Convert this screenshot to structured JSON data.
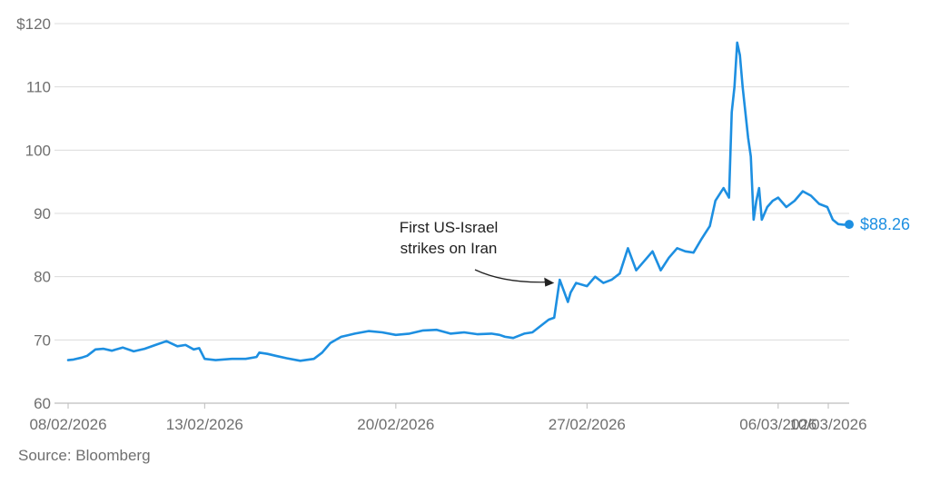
{
  "chart_data": {
    "type": "line",
    "title": "",
    "xlabel": "",
    "ylabel": "",
    "ylim": [
      60,
      120
    ],
    "y_ticks": [
      60,
      70,
      80,
      90,
      100,
      110,
      120
    ],
    "y_tick_labels": [
      "60",
      "70",
      "80",
      "90",
      "100",
      "110",
      "$120"
    ],
    "x_ticks": [
      "08/02/2026",
      "13/02/2026",
      "20/02/2026",
      "27/02/2026",
      "06/03/2026",
      "10/03/2026"
    ],
    "grid": "horizontal",
    "legend": "none",
    "line_color": "#1d8fe1",
    "series": [
      {
        "x": [
          "08/02/2026",
          "08/02/2026",
          "08/02/2026",
          "09/02/2026",
          "09/02/2026",
          "09/02/2026",
          "09/02/2026",
          "10/02/2026",
          "10/02/2026",
          "10/02/2026",
          "11/02/2026",
          "11/02/2026",
          "12/02/2026",
          "12/02/2026",
          "12/02/2026",
          "12/02/2026",
          "13/02/2026",
          "13/02/2026",
          "14/02/2026",
          "15/02/2026",
          "15/02/2026",
          "16/02/2026",
          "16/02/2026",
          "16/02/2026",
          "17/02/2026",
          "17/02/2026",
          "18/02/2026",
          "18/02/2026",
          "18/02/2026",
          "19/02/2026",
          "19/02/2026",
          "20/02/2026",
          "20/02/2026",
          "21/02/2026",
          "22/02/2026",
          "22/02/2026",
          "23/02/2026",
          "23/02/2026",
          "24/02/2026",
          "24/02/2026",
          "25/02/2026",
          "25/02/2026",
          "25/02/2026",
          "26/02/2026",
          "26/02/2026",
          "26/02/2026",
          "27/02/2026",
          "27/02/2026",
          "27/02/2026",
          "28/02/2026",
          "28/02/2026",
          "28/02/2026",
          "01/03/2026",
          "01/03/2026",
          "01/03/2026",
          "01/03/2026",
          "02/03/2026",
          "02/03/2026",
          "02/03/2026",
          "03/03/2026",
          "03/03/2026",
          "03/03/2026",
          "04/03/2026",
          "04/03/2026",
          "04/03/2026",
          "05/03/2026",
          "05/03/2026",
          "05/03/2026",
          "06/03/2026",
          "06/03/2026",
          "06/03/2026",
          "06/03/2026",
          "07/03/2026",
          "07/03/2026",
          "07/03/2026",
          "07/03/2026",
          "07/03/2026",
          "07/03/2026",
          "07/03/2026",
          "07/03/2026",
          "08/03/2026",
          "08/03/2026",
          "08/03/2026",
          "08/03/2026",
          "08/03/2026",
          "08/03/2026",
          "08/03/2026",
          "08/03/2026",
          "08/03/2026",
          "09/03/2026",
          "09/03/2026",
          "09/03/2026",
          "09/03/2026",
          "10/03/2026",
          "10/03/2026",
          "10/03/2026"
        ],
        "t": [
          0.0,
          0.2,
          0.5,
          0.7,
          1.0,
          1.3,
          1.6,
          2.0,
          2.4,
          2.8,
          3.2,
          3.6,
          4.0,
          4.3,
          4.6,
          4.8,
          5.0,
          5.4,
          6.0,
          6.5,
          6.9,
          7.0,
          7.3,
          7.6,
          8.0,
          8.5,
          9.0,
          9.3,
          9.6,
          10.0,
          10.5,
          11.0,
          11.5,
          12.0,
          12.5,
          13.0,
          13.5,
          14.0,
          14.5,
          15.0,
          15.5,
          15.8,
          16.0,
          16.3,
          16.7,
          17.0,
          17.6,
          17.8,
          18.0,
          18.3,
          18.4,
          18.6,
          19.0,
          19.3,
          19.6,
          19.9,
          20.2,
          20.5,
          20.8,
          21.1,
          21.4,
          21.7,
          22.0,
          22.3,
          22.6,
          22.9,
          23.2,
          23.5,
          23.7,
          24.0,
          24.2,
          24.3,
          24.4,
          24.5,
          24.6,
          24.7,
          24.8,
          24.9,
          25.0,
          25.1,
          25.2,
          25.3,
          25.4,
          25.6,
          25.8,
          26.0,
          26.3,
          26.6,
          26.9,
          27.2,
          27.5,
          27.8,
          28.0,
          28.2,
          28.4,
          28.6
        ],
        "y": [
          66.8,
          66.9,
          67.2,
          67.5,
          68.5,
          68.6,
          68.3,
          68.8,
          68.2,
          68.6,
          69.2,
          69.8,
          69.0,
          69.2,
          68.5,
          68.7,
          67.0,
          66.8,
          67.0,
          67.0,
          67.3,
          68.0,
          67.8,
          67.5,
          67.1,
          66.7,
          67.0,
          68.0,
          69.5,
          70.5,
          71.0,
          71.4,
          71.2,
          70.8,
          71.0,
          71.5,
          71.6,
          71.0,
          71.2,
          70.9,
          71.0,
          70.8,
          70.5,
          70.3,
          71.0,
          71.2,
          73.2,
          73.5,
          79.5,
          76.0,
          77.5,
          79.0,
          78.5,
          80.0,
          79.0,
          79.5,
          80.5,
          84.5,
          81.0,
          82.5,
          84.0,
          81.0,
          83.0,
          84.5,
          84.0,
          83.8,
          86.0,
          88.0,
          92.0,
          94.0,
          92.5,
          106.0,
          110.0,
          117.0,
          115.0,
          110.0,
          106.0,
          102.0,
          99.0,
          89.0,
          92.0,
          94.0,
          89.0,
          91.0,
          92.0,
          92.5,
          91.0,
          92.0,
          93.5,
          92.8,
          91.5,
          91.0,
          89.0,
          88.3,
          88.2,
          88.26
        ]
      }
    ],
    "end_label": "$88.26",
    "annotation": {
      "lines": [
        "First US-Israel",
        "strikes on Iran"
      ],
      "target_t": 18.0,
      "target_y": 79.0
    }
  },
  "footer": {
    "source": "Source: Bloomberg"
  }
}
